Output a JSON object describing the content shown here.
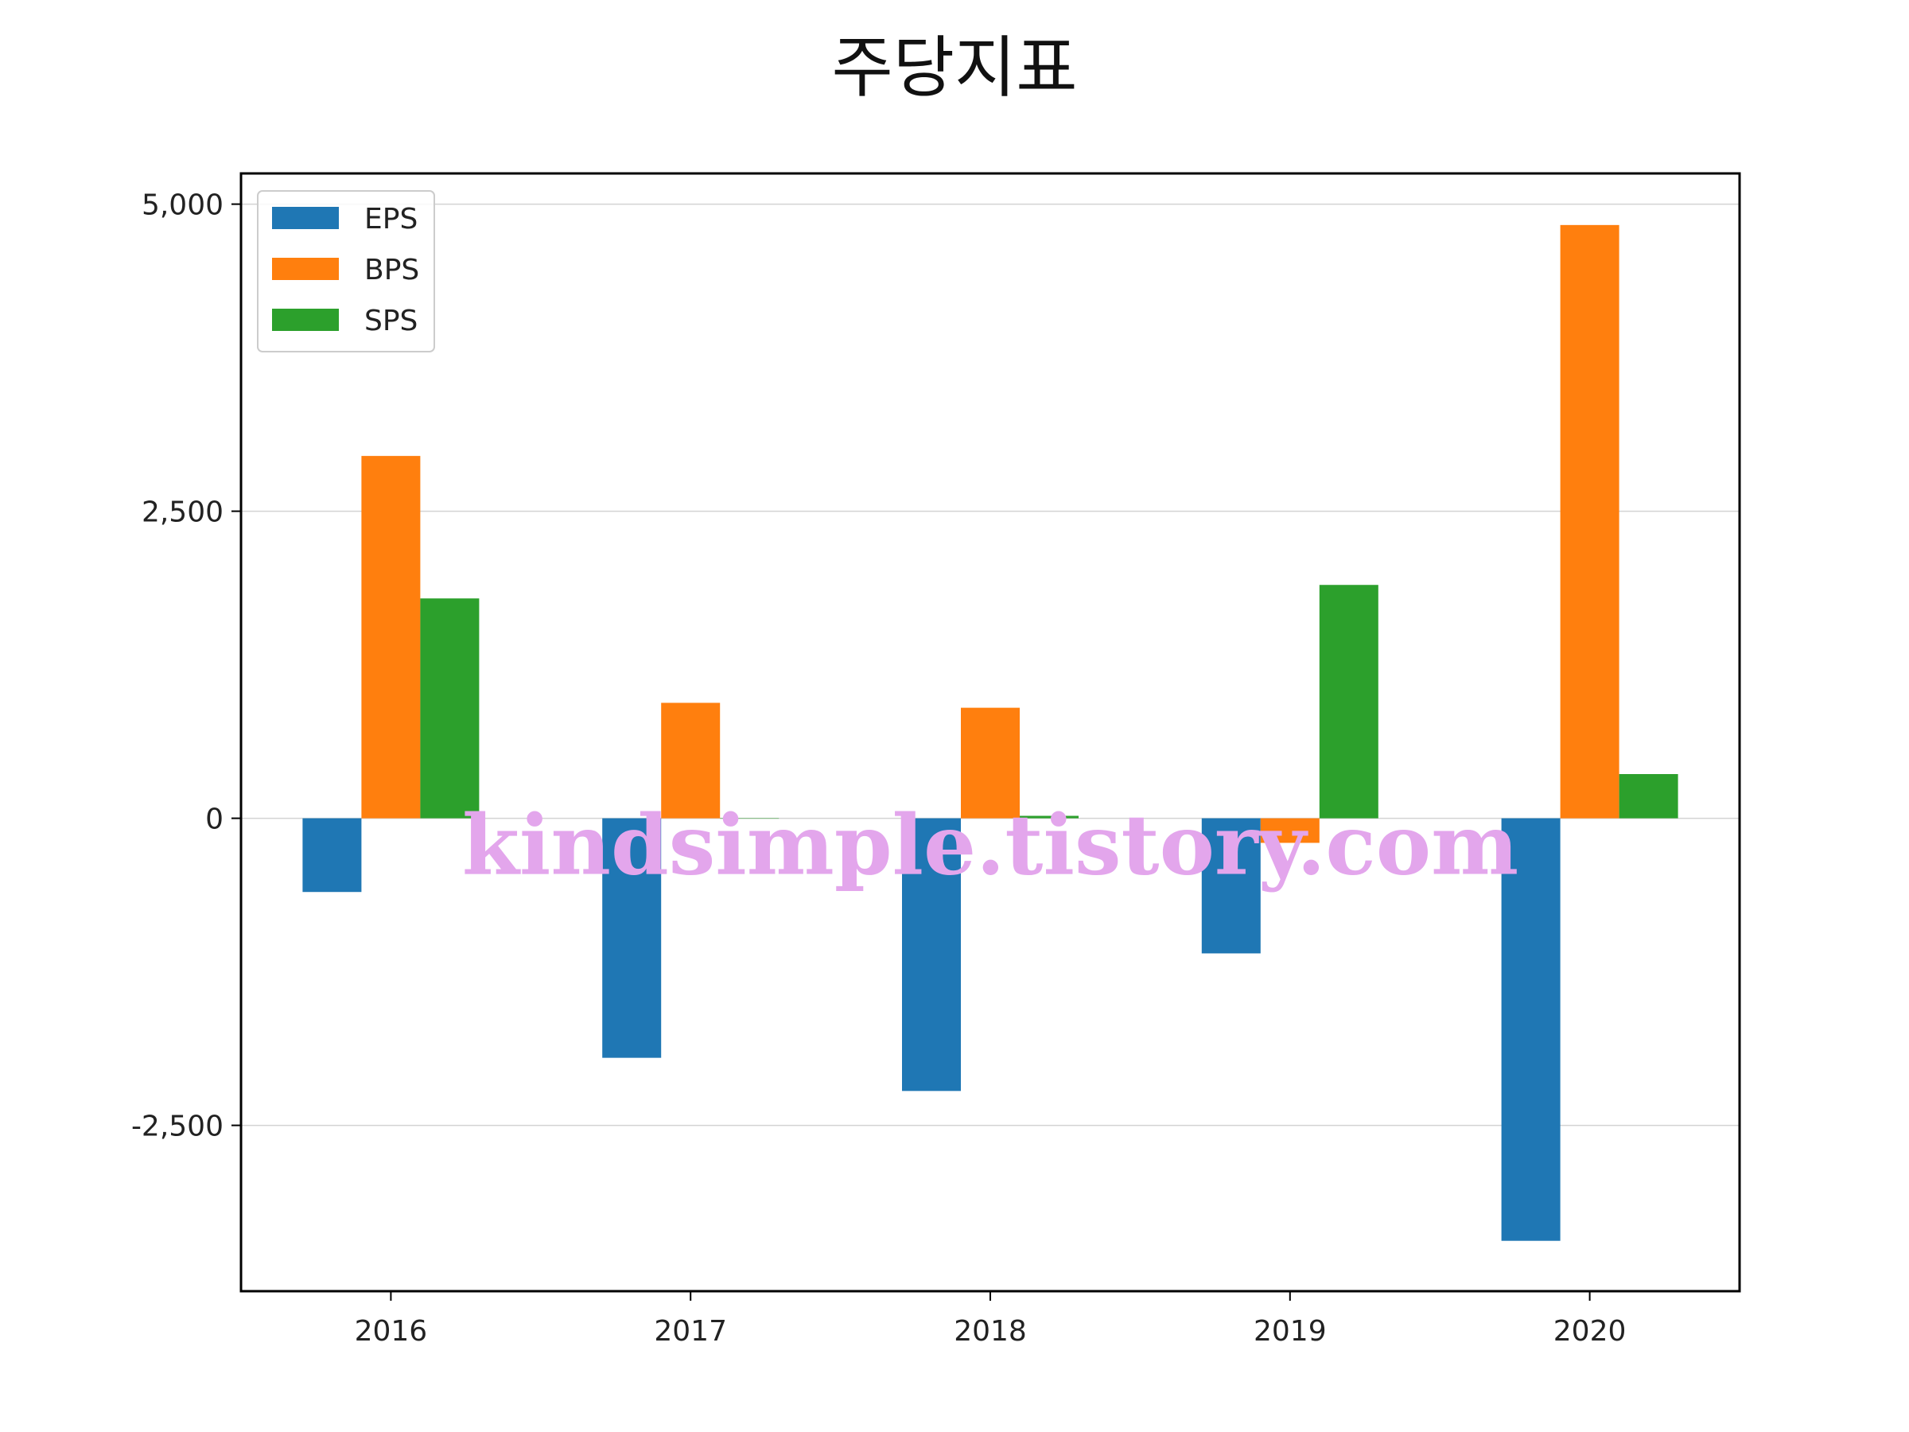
{
  "chart_data": {
    "type": "bar",
    "title": "주당지표",
    "categories": [
      "2016",
      "2017",
      "2018",
      "2019",
      "2020"
    ],
    "series": [
      {
        "name": "EPS",
        "color": "#1f77b4",
        "values": [
          -600,
          -1950,
          -2220,
          -1100,
          -3440
        ]
      },
      {
        "name": "BPS",
        "color": "#ff7f0e",
        "values": [
          2950,
          940,
          900,
          -200,
          4830
        ]
      },
      {
        "name": "SPS",
        "color": "#2ca02c",
        "values": [
          1790,
          0,
          20,
          1900,
          360
        ]
      }
    ],
    "yticks": [
      {
        "value": -2500,
        "label": "-2,500"
      },
      {
        "value": 0,
        "label": "0"
      },
      {
        "value": 2500,
        "label": "2,500"
      },
      {
        "value": 5000,
        "label": "5,000"
      }
    ],
    "ylim": [
      -3850,
      5250
    ],
    "grid": "y",
    "legend": "top-left"
  },
  "watermark": "kindsimple.tistory.com"
}
